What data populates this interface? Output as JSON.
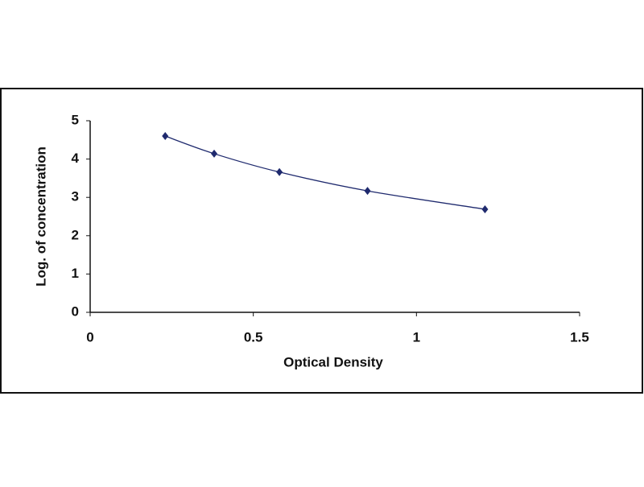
{
  "chart_data": {
    "type": "scatter",
    "x_label": "Optical Density",
    "y_label": "Log. of concentration",
    "x": [
      0.23,
      0.38,
      0.58,
      0.85,
      1.21
    ],
    "series": [
      {
        "color": "#1f2a6e",
        "values": [
          4.6,
          4.14,
          3.66,
          3.17,
          2.69
        ]
      }
    ],
    "xlim": [
      0,
      1.5
    ],
    "xticks": [
      0,
      0.5,
      1,
      1.5
    ],
    "ylim": [
      0,
      5
    ],
    "yticks": [
      0,
      1,
      2,
      3,
      4,
      5
    ],
    "smooth_line": true,
    "grid": false
  }
}
